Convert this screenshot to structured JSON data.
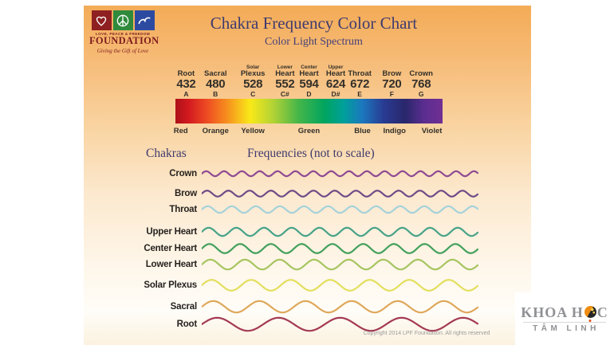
{
  "logo": {
    "line1": "LOVE, PEACE & FREEDOM",
    "line2": "FOUNDATION",
    "tagline": "Giving the Gift of Love",
    "icons": [
      "heart-icon",
      "peace-icon",
      "doves-icon"
    ],
    "colors": {
      "heart_box": "#8e2022",
      "peace_box": "#2f8a3c",
      "doves_box": "#2d4aa1"
    }
  },
  "header": {
    "title": "Chakra Frequency Color Chart",
    "subtitle": "Color Light Spectrum"
  },
  "sections": {
    "chakras": "Chakras",
    "frequencies": "Frequencies (not to scale)"
  },
  "spectrum": {
    "notes": [
      {
        "top": "",
        "name": "Root",
        "freq": "432",
        "note": "A",
        "pct": 4
      },
      {
        "top": "",
        "name": "Sacral",
        "freq": "480",
        "note": "B",
        "pct": 15
      },
      {
        "top": "Solar",
        "name": "Plexus",
        "freq": "528",
        "note": "C",
        "pct": 29
      },
      {
        "top": "Lower",
        "name": "Heart",
        "freq": "552",
        "note": "C#",
        "pct": 41
      },
      {
        "top": "Center",
        "name": "Heart",
        "freq": "594",
        "note": "D",
        "pct": 50
      },
      {
        "top": "Upper",
        "name": "Heart",
        "freq": "624",
        "note": "D#",
        "pct": 60
      },
      {
        "top": "",
        "name": "Throat",
        "freq": "672",
        "note": "E",
        "pct": 69
      },
      {
        "top": "",
        "name": "Brow",
        "freq": "720",
        "note": "F",
        "pct": 81
      },
      {
        "top": "",
        "name": "Crown",
        "freq": "768",
        "note": "G",
        "pct": 92
      }
    ],
    "gradient_stops": [
      {
        "color": "#ad1018",
        "pct": 0
      },
      {
        "color": "#d31a20",
        "pct": 5
      },
      {
        "color": "#ee4d23",
        "pct": 12
      },
      {
        "color": "#f68c1e",
        "pct": 19
      },
      {
        "color": "#f9e918",
        "pct": 28
      },
      {
        "color": "#aed136",
        "pct": 37
      },
      {
        "color": "#45b649",
        "pct": 46
      },
      {
        "color": "#00a45f",
        "pct": 56
      },
      {
        "color": "#00a09b",
        "pct": 63
      },
      {
        "color": "#1c77be",
        "pct": 70
      },
      {
        "color": "#293b92",
        "pct": 78
      },
      {
        "color": "#29276b",
        "pct": 86
      },
      {
        "color": "#5b2d90",
        "pct": 93
      },
      {
        "color": "#712f93",
        "pct": 100
      }
    ],
    "color_labels": [
      {
        "label": "Red",
        "pct": 2
      },
      {
        "label": "Orange",
        "pct": 15
      },
      {
        "label": "Yellow",
        "pct": 29
      },
      {
        "label": "Green",
        "pct": 50
      },
      {
        "label": "Blue",
        "pct": 70
      },
      {
        "label": "Indigo",
        "pct": 82
      },
      {
        "label": "Violet",
        "pct": 96
      }
    ]
  },
  "chart_data": {
    "type": "line",
    "title": "Chakra Frequency Color Chart",
    "subtitle": "Color Light Spectrum",
    "frequency_scale": [
      {
        "chakra": "Root",
        "frequency": 432,
        "note": "A",
        "color_band": "Red"
      },
      {
        "chakra": "Sacral",
        "frequency": 480,
        "note": "B",
        "color_band": "Orange"
      },
      {
        "chakra": "Solar Plexus",
        "frequency": 528,
        "note": "C",
        "color_band": "Yellow"
      },
      {
        "chakra": "Lower Heart",
        "frequency": 552,
        "note": "C#",
        "color_band": "Green"
      },
      {
        "chakra": "Center Heart",
        "frequency": 594,
        "note": "D",
        "color_band": "Green"
      },
      {
        "chakra": "Upper Heart",
        "frequency": 624,
        "note": "D#",
        "color_band": "Green"
      },
      {
        "chakra": "Throat",
        "frequency": 672,
        "note": "E",
        "color_band": "Blue"
      },
      {
        "chakra": "Brow",
        "frequency": 720,
        "note": "F",
        "color_band": "Indigo"
      },
      {
        "chakra": "Crown",
        "frequency": 768,
        "note": "G",
        "color_band": "Violet"
      }
    ],
    "wave_rows": [
      {
        "label": "Crown",
        "color": "#8e4b93",
        "cycles": 15.5,
        "amplitude": 3.2
      },
      {
        "label": "Brow",
        "color": "#6f4c87",
        "cycles": 13,
        "amplitude": 3.8
      },
      {
        "label": "Throat",
        "color": "#a5d2da",
        "cycles": 11.5,
        "amplitude": 4.2
      },
      {
        "label": "Upper Heart",
        "color": "#47a389",
        "cycles": 10,
        "amplitude": 5.2
      },
      {
        "label": "Center Heart",
        "color": "#43a05c",
        "cycles": 9,
        "amplitude": 5.8
      },
      {
        "label": "Lower Heart",
        "color": "#a6c560",
        "cycles": 8,
        "amplitude": 6.2
      },
      {
        "label": "Solar Plexus",
        "color": "#e3df5e",
        "cycles": 7,
        "amplitude": 6.8
      },
      {
        "label": "Sacral",
        "color": "#dfa85b",
        "cycles": 6,
        "amplitude": 7.2
      },
      {
        "label": "Root",
        "color": "#a43a54",
        "cycles": 4.5,
        "amplitude": 8.2
      }
    ],
    "legend_position": "left",
    "grid": false
  },
  "footer": {
    "copyright": "Copyright 2014 LPF Foundation. All rights reserved"
  },
  "watermark": {
    "line1_left": "KHOA H",
    "line1_right": "C",
    "line2": "TÂM LINH",
    "sphere_icon": "globe-sphere-icon"
  }
}
